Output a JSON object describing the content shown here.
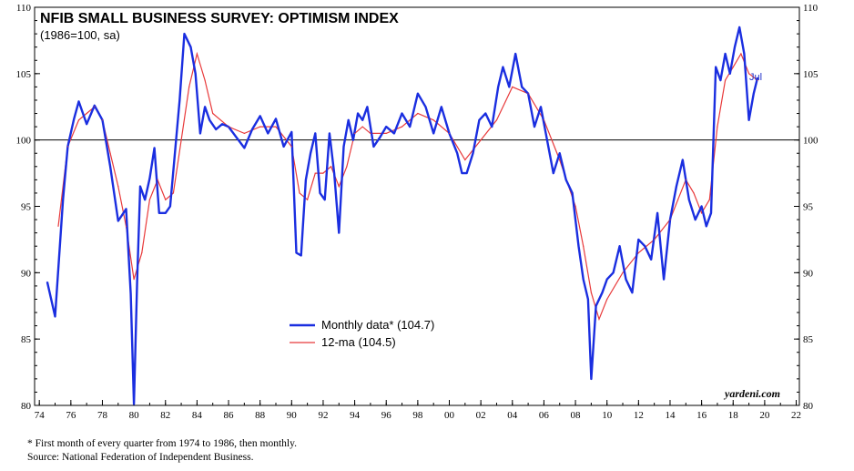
{
  "chart_data": {
    "type": "line",
    "title": "NFIB SMALL BUSINESS SURVEY: OPTIMISM INDEX",
    "subtitle": "(1986=100, sa)",
    "ylim": [
      80,
      110
    ],
    "y_ticks": [
      "80",
      "85",
      "90",
      "95",
      "100",
      "105",
      "110"
    ],
    "xlim": [
      1973.7,
      2022.2
    ],
    "x_ticks": [
      "74",
      "76",
      "78",
      "80",
      "82",
      "84",
      "86",
      "88",
      "90",
      "92",
      "94",
      "96",
      "98",
      "00",
      "02",
      "04",
      "06",
      "08",
      "10",
      "12",
      "14",
      "16",
      "18",
      "20",
      "22"
    ],
    "reference_line": 100,
    "grid": false,
    "legend_position": "lower-center",
    "end_label": "Jul",
    "source_mark": "yardeni.com",
    "colors": {
      "monthly": "#1a2ee0",
      "ma": "#e8393a",
      "reference": "#000000"
    },
    "series": [
      {
        "name": "Monthly data* (104.7)",
        "x": [
          1974.5,
          1975.0,
          1975.5,
          1975.8,
          1976.2,
          1976.5,
          1977.0,
          1977.5,
          1978.0,
          1978.5,
          1979.0,
          1979.5,
          1979.8,
          1980.0,
          1980.2,
          1980.4,
          1980.7,
          1981.0,
          1981.3,
          1981.6,
          1982.0,
          1982.3,
          1982.6,
          1982.9,
          1983.2,
          1983.6,
          1983.9,
          1984.2,
          1984.5,
          1984.8,
          1985.2,
          1985.6,
          1986.0,
          1986.5,
          1987.0,
          1987.5,
          1988.0,
          1988.5,
          1989.0,
          1989.5,
          1990.0,
          1990.3,
          1990.6,
          1990.9,
          1991.2,
          1991.5,
          1991.8,
          1992.1,
          1992.4,
          1992.7,
          1993.0,
          1993.3,
          1993.6,
          1993.9,
          1994.2,
          1994.5,
          1994.8,
          1995.2,
          1995.6,
          1996.0,
          1996.5,
          1997.0,
          1997.5,
          1998.0,
          1998.5,
          1999.0,
          1999.5,
          2000.0,
          2000.5,
          2000.8,
          2001.1,
          2001.5,
          2001.9,
          2002.3,
          2002.7,
          2003.1,
          2003.4,
          2003.8,
          2004.2,
          2004.6,
          2005.0,
          2005.4,
          2005.8,
          2006.2,
          2006.6,
          2007.0,
          2007.4,
          2007.8,
          2008.2,
          2008.5,
          2008.8,
          2009.0,
          2009.3,
          2009.7,
          2010.0,
          2010.4,
          2010.8,
          2011.2,
          2011.6,
          2012.0,
          2012.4,
          2012.8,
          2013.2,
          2013.6,
          2014.0,
          2014.4,
          2014.8,
          2015.2,
          2015.6,
          2016.0,
          2016.3,
          2016.6,
          2016.9,
          2017.2,
          2017.5,
          2017.8,
          2018.1,
          2018.4,
          2018.7,
          2019.0,
          2019.3,
          2019.55
        ],
        "values": [
          89.3,
          86.7,
          95.5,
          99.5,
          101.6,
          102.9,
          101.2,
          102.6,
          101.5,
          98.0,
          93.9,
          94.8,
          88.4,
          80.1,
          89.3,
          96.5,
          95.5,
          97.1,
          99.4,
          94.5,
          94.5,
          95.0,
          99.0,
          103.0,
          108.0,
          107.0,
          105.0,
          100.5,
          102.5,
          101.5,
          100.8,
          101.2,
          101.0,
          100.2,
          99.4,
          100.8,
          101.8,
          100.5,
          101.6,
          99.5,
          100.6,
          91.5,
          91.3,
          97.0,
          99.0,
          100.5,
          96.0,
          95.5,
          100.5,
          97.5,
          93.0,
          99.5,
          101.5,
          100.0,
          102.0,
          101.5,
          102.5,
          99.5,
          100.2,
          101.0,
          100.5,
          102.0,
          101.0,
          103.5,
          102.5,
          100.5,
          102.5,
          100.5,
          99.0,
          97.5,
          97.5,
          99.0,
          101.5,
          102.0,
          101.0,
          104.0,
          105.5,
          104.0,
          106.5,
          104.0,
          103.5,
          101.0,
          102.5,
          100.0,
          97.5,
          99.0,
          97.0,
          96.0,
          92.0,
          89.5,
          88.0,
          82.0,
          87.5,
          88.5,
          89.5,
          90.0,
          92.0,
          89.5,
          88.5,
          92.5,
          92.0,
          91.0,
          94.5,
          89.5,
          94.0,
          96.5,
          98.5,
          95.5,
          94.0,
          95.0,
          93.5,
          94.5,
          105.5,
          104.5,
          106.5,
          105.0,
          107.0,
          108.5,
          106.5,
          101.5,
          103.5,
          104.7
        ]
      },
      {
        "name": "12-ma (104.5)",
        "x": [
          1975.2,
          1975.8,
          1976.5,
          1977.0,
          1977.5,
          1978.0,
          1978.5,
          1979.0,
          1979.5,
          1980.0,
          1980.5,
          1981.0,
          1981.5,
          1982.0,
          1982.5,
          1983.0,
          1983.5,
          1984.0,
          1984.5,
          1985.0,
          1986.0,
          1987.0,
          1988.0,
          1989.0,
          1990.0,
          1990.5,
          1991.0,
          1991.5,
          1992.0,
          1992.5,
          1993.0,
          1993.5,
          1994.0,
          1994.5,
          1995.0,
          1996.0,
          1997.0,
          1998.0,
          1999.0,
          2000.0,
          2001.0,
          2002.0,
          2003.0,
          2004.0,
          2005.0,
          2006.0,
          2007.0,
          2008.0,
          2008.5,
          2009.0,
          2009.5,
          2010.0,
          2011.0,
          2012.0,
          2013.0,
          2014.0,
          2014.5,
          2015.0,
          2015.5,
          2016.0,
          2016.5,
          2017.0,
          2017.5,
          2018.0,
          2018.5,
          2019.0,
          2019.55
        ],
        "values": [
          93.5,
          99.5,
          101.5,
          102.0,
          102.5,
          101.5,
          99.0,
          96.5,
          93.5,
          89.5,
          91.5,
          95.5,
          97.0,
          95.5,
          96.0,
          100.0,
          104.0,
          106.5,
          104.5,
          102.0,
          101.0,
          100.5,
          101.0,
          101.0,
          99.5,
          96.0,
          95.5,
          97.5,
          97.5,
          98.0,
          96.5,
          98.0,
          100.5,
          101.0,
          100.5,
          100.5,
          101.0,
          102.0,
          101.5,
          100.5,
          98.5,
          100.0,
          101.5,
          104.0,
          103.5,
          101.5,
          98.5,
          95.0,
          92.0,
          88.5,
          86.5,
          88.0,
          90.0,
          91.5,
          92.5,
          94.0,
          95.5,
          97.0,
          96.0,
          94.5,
          95.5,
          101.0,
          104.5,
          105.5,
          106.5,
          105.0,
          104.5
        ]
      }
    ]
  },
  "footnote_lines": [
    "*  First month of every quarter from 1974 to 1986, then monthly.",
    "Source: National Federation of Independent Business."
  ]
}
